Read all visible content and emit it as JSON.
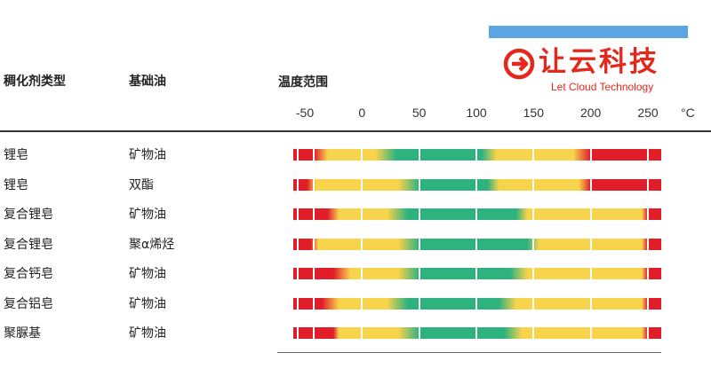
{
  "logo": {
    "name_cn": "让云科技",
    "name_en": "Let Cloud Technology",
    "color": "#e4281b",
    "bar_color": "#5ba5e0"
  },
  "headers": {
    "type": "稠化剂类型",
    "oil": "基础油",
    "range": "温度范围"
  },
  "colors": {
    "red": "#e11d2a",
    "yellow": "#f8d34c",
    "green": "#2fb37e"
  },
  "chart_data": {
    "type": "bar",
    "unit": "°C",
    "ticks": [
      -50,
      0,
      50,
      100,
      150,
      200,
      250
    ],
    "xlim": [
      -60,
      262
    ],
    "rows": [
      {
        "thickener": "锂皂",
        "base_oil": "矿物油",
        "segments": [
          {
            "from": -60,
            "to": -42,
            "color": "red"
          },
          {
            "from": -42,
            "to": -30,
            "color": "yellow"
          },
          {
            "from": 30,
            "to": 52,
            "color": "green"
          },
          {
            "from": 52,
            "to": 105,
            "color": "green"
          },
          {
            "from": 105,
            "to": 118,
            "color": "yellow"
          },
          {
            "from": 185,
            "to": 200,
            "color": "red"
          },
          {
            "from": 200,
            "to": 262,
            "color": "red"
          }
        ]
      },
      {
        "thickener": "锂皂",
        "base_oil": "双酯",
        "segments": [
          {
            "from": -60,
            "to": -48,
            "color": "red"
          },
          {
            "from": -48,
            "to": -40,
            "color": "yellow"
          },
          {
            "from": 50,
            "to": 110,
            "color": "green"
          },
          {
            "from": 110,
            "to": 120,
            "color": "yellow"
          },
          {
            "from": 190,
            "to": 200,
            "color": "red"
          },
          {
            "from": 200,
            "to": 262,
            "color": "red"
          }
        ]
      },
      {
        "thickener": "复合锂皂",
        "base_oil": "矿物油",
        "segments": [
          {
            "from": -60,
            "to": -30,
            "color": "red"
          },
          {
            "from": -30,
            "to": -20,
            "color": "yellow"
          },
          {
            "from": 40,
            "to": 135,
            "color": "green"
          },
          {
            "from": 135,
            "to": 145,
            "color": "yellow"
          },
          {
            "from": 245,
            "to": 250,
            "color": "red"
          },
          {
            "from": 250,
            "to": 262,
            "color": "red"
          }
        ]
      },
      {
        "thickener": "复合锂皂",
        "base_oil": "聚α烯烃",
        "segments": [
          {
            "from": -60,
            "to": -45,
            "color": "red"
          },
          {
            "from": -45,
            "to": -38,
            "color": "yellow"
          },
          {
            "from": 50,
            "to": 145,
            "color": "green"
          },
          {
            "from": 145,
            "to": 155,
            "color": "yellow"
          },
          {
            "from": 245,
            "to": 250,
            "color": "red"
          },
          {
            "from": 250,
            "to": 262,
            "color": "red"
          }
        ]
      },
      {
        "thickener": "复合钙皂",
        "base_oil": "矿物油",
        "segments": [
          {
            "from": -60,
            "to": -25,
            "color": "red"
          },
          {
            "from": -25,
            "to": -10,
            "color": "yellow"
          },
          {
            "from": 50,
            "to": 130,
            "color": "green"
          },
          {
            "from": 130,
            "to": 145,
            "color": "yellow"
          },
          {
            "from": 245,
            "to": 250,
            "color": "red"
          },
          {
            "from": 250,
            "to": 262,
            "color": "red"
          }
        ]
      },
      {
        "thickener": "复合铝皂",
        "base_oil": "矿物油",
        "segments": [
          {
            "from": -60,
            "to": -35,
            "color": "red"
          },
          {
            "from": -35,
            "to": -20,
            "color": "yellow"
          },
          {
            "from": 40,
            "to": 120,
            "color": "green"
          },
          {
            "from": 120,
            "to": 135,
            "color": "yellow"
          },
          {
            "from": 245,
            "to": 250,
            "color": "red"
          },
          {
            "from": 250,
            "to": 262,
            "color": "red"
          }
        ]
      },
      {
        "thickener": "聚脲基",
        "base_oil": "矿物油",
        "segments": [
          {
            "from": -60,
            "to": -25,
            "color": "red"
          },
          {
            "from": -25,
            "to": -20,
            "color": "yellow"
          },
          {
            "from": 50,
            "to": 125,
            "color": "green"
          },
          {
            "from": 125,
            "to": 140,
            "color": "yellow"
          },
          {
            "from": 245,
            "to": 250,
            "color": "red"
          },
          {
            "from": 250,
            "to": 262,
            "color": "red"
          }
        ]
      }
    ]
  }
}
